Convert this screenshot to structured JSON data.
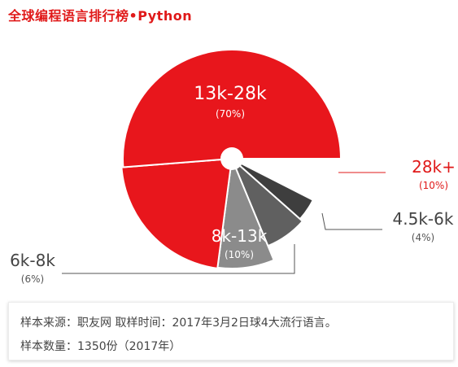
{
  "header": {
    "title": "全球编程语言排行榜•Python"
  },
  "chart_data": {
    "type": "pie",
    "title": "全球编程语言排行榜•Python",
    "slices": [
      {
        "label": "28k+",
        "percent_label": "(10%)",
        "value": 10,
        "color": "#ffffff",
        "label_color": "#e01919"
      },
      {
        "label": "4.5k-6k",
        "percent_label": "(4%)",
        "value": 4,
        "color": "#3e3e3e",
        "label_color": "#444444"
      },
      {
        "label": "8k-13k",
        "percent_label": "(10%)",
        "value": 10,
        "color": "#606060",
        "label_color": "#ffffff"
      },
      {
        "label": "8k-13k",
        "percent_label": "(10%)",
        "value": 10,
        "color": "#8b8b8b",
        "label_color": "#ffffff"
      },
      {
        "label": "6k-8k",
        "percent_label": "(6%)",
        "value": 6,
        "color": "#e8161c",
        "label_color": "#444444"
      },
      {
        "label": "13k-28k",
        "percent_label": "(70%)",
        "value": 70,
        "color": "#e8161c",
        "label_color": "#ffffff"
      }
    ],
    "colors": {
      "accent": "#e01919",
      "pie_red": "#e8161c",
      "leader_line": "#555555"
    }
  },
  "source": {
    "line1": "样本来源：职友网  取样时间：2017年3月2日球4大流行语言。",
    "line2": "样本数量：1350份（2017年）"
  }
}
